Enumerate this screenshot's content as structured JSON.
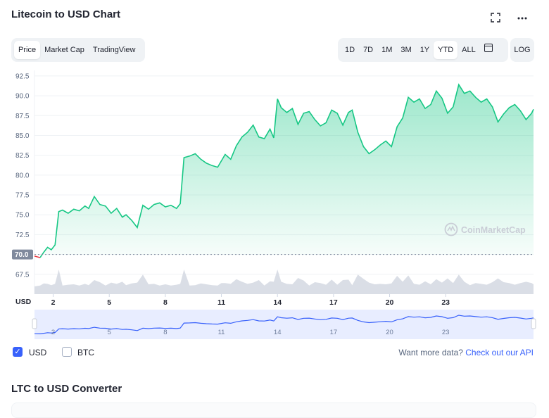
{
  "title": "Litecoin to USD Chart",
  "icons": {
    "fullscreen": "fullscreen-icon",
    "more": "more-icon",
    "calendar": "calendar-icon",
    "check": "check-icon"
  },
  "chart_tabs": [
    {
      "label": "Price",
      "active": true
    },
    {
      "label": "Market Cap",
      "active": false
    },
    {
      "label": "TradingView",
      "active": false
    }
  ],
  "ranges": [
    {
      "label": "1D"
    },
    {
      "label": "7D"
    },
    {
      "label": "1M"
    },
    {
      "label": "3M"
    },
    {
      "label": "1Y"
    },
    {
      "label": "YTD",
      "active": true
    },
    {
      "label": "ALL"
    }
  ],
  "log_label": "LOG",
  "watermark": "CoinMarketCap",
  "currency_label": "USD",
  "legend": {
    "usd": "USD",
    "btc": "BTC",
    "usd_checked": true,
    "btc_checked": false
  },
  "api": {
    "prefix": "Want more data?",
    "link": "Check out our API"
  },
  "converter_title": "LTC to USD Converter",
  "colors": {
    "line": "#16c784",
    "fill_top": "#16c784",
    "below_open": "#ea3943",
    "navigator_line": "#3861fb",
    "navigator_bg": "#e8edff",
    "volume": "#d6dae3",
    "link": "#3861fb"
  },
  "chart_data": {
    "type": "area",
    "title": "",
    "xlabel": "",
    "ylabel": "",
    "ylim": [
      65,
      93.2
    ],
    "xlim": [
      1,
      27.7
    ],
    "y_ticks": [
      67.5,
      70.0,
      72.5,
      75.0,
      77.5,
      80.0,
      82.5,
      85.0,
      87.5,
      90.0,
      92.5
    ],
    "y_tick_labels": [
      "67.5",
      "70.0",
      "72.5",
      "75.0",
      "77.5",
      "80.0",
      "82.5",
      "85.0",
      "87.5",
      "90.0",
      "92.5"
    ],
    "x_ticks": [
      2,
      5,
      8,
      11,
      14,
      17,
      20,
      23
    ],
    "x_tick_labels": [
      "2",
      "5",
      "8",
      "11",
      "14",
      "17",
      "20",
      "23"
    ],
    "open_value": 70.0,
    "open_label": "70.0",
    "grid": true,
    "legend": "none",
    "series": [
      {
        "x": [
          1.0,
          1.3,
          1.5,
          1.7,
          1.9,
          2.1,
          2.3,
          2.5,
          2.8,
          3.1,
          3.4,
          3.7,
          3.9,
          4.2,
          4.5,
          4.8,
          5.1,
          5.4,
          5.7,
          5.9,
          6.2,
          6.5,
          6.8,
          7.1,
          7.4,
          7.7,
          8.0,
          8.3,
          8.6,
          8.8,
          9.0,
          9.3,
          9.6,
          9.9,
          10.2,
          10.5,
          10.8,
          11.0,
          11.2,
          11.5,
          11.8,
          12.1,
          12.4,
          12.7,
          13.0,
          13.3,
          13.6,
          13.8,
          14.0,
          14.2,
          14.5,
          14.8,
          15.1,
          15.4,
          15.7,
          16.0,
          16.3,
          16.6,
          16.9,
          17.2,
          17.5,
          17.8,
          18.0,
          18.3,
          18.6,
          18.9,
          19.2,
          19.5,
          19.8,
          20.1,
          20.4,
          20.7,
          21.0,
          21.3,
          21.6,
          21.9,
          22.2,
          22.5,
          22.8,
          23.1,
          23.4,
          23.7,
          24.0,
          24.3,
          24.6,
          24.9,
          25.2,
          25.5,
          25.8,
          26.1,
          26.4,
          26.7,
          27.0,
          27.3,
          27.6,
          27.7
        ],
        "y": [
          69.8,
          69.6,
          70.3,
          70.9,
          70.6,
          71.2,
          75.4,
          75.6,
          75.2,
          75.7,
          75.5,
          76.1,
          75.8,
          77.3,
          76.3,
          76.1,
          75.2,
          75.8,
          74.7,
          75.0,
          74.3,
          73.4,
          76.2,
          75.7,
          76.3,
          76.5,
          76.0,
          76.2,
          75.8,
          76.4,
          82.2,
          82.4,
          82.7,
          82.0,
          81.5,
          81.2,
          81.0,
          81.8,
          82.6,
          82.0,
          83.7,
          84.8,
          85.4,
          86.3,
          84.8,
          84.6,
          85.8,
          84.7,
          89.6,
          88.5,
          87.9,
          88.4,
          86.4,
          87.8,
          88.0,
          87.0,
          86.2,
          86.6,
          88.2,
          87.8,
          86.3,
          87.9,
          88.2,
          85.4,
          83.6,
          82.7,
          83.2,
          83.8,
          84.3,
          83.6,
          86.1,
          87.2,
          89.8,
          89.2,
          89.6,
          88.4,
          88.9,
          90.6,
          89.7,
          87.8,
          88.6,
          91.4,
          90.3,
          90.6,
          89.8,
          89.2,
          89.6,
          88.6,
          86.7,
          87.7,
          88.5,
          88.9,
          88.1,
          87.0,
          87.8,
          88.3
        ]
      }
    ]
  }
}
